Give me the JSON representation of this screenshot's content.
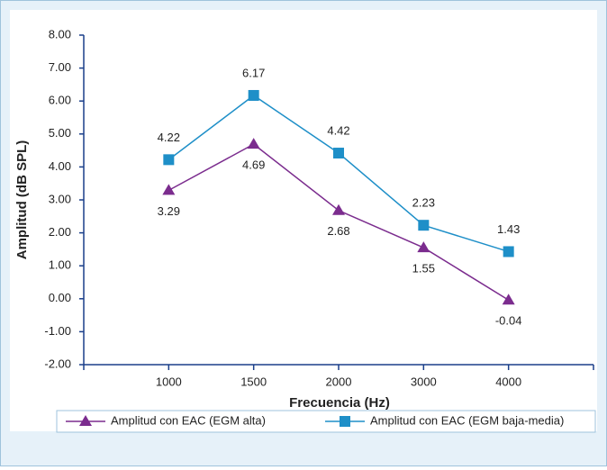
{
  "chart_data": {
    "type": "line",
    "x_label": "Frecuencia (Hz)",
    "y_label": "Amplitud (dB SPL)",
    "categories": [
      "1000",
      "1500",
      "2000",
      "3000",
      "4000"
    ],
    "series": [
      {
        "name": "Amplitud con EAC (EGM alta)",
        "color": "#7b2c8e",
        "marker": "triangle",
        "values": [
          3.29,
          4.69,
          2.68,
          1.55,
          -0.04
        ]
      },
      {
        "name": "Amplitud con EAC (EGM baja-media)",
        "color": "#1e8fc8",
        "marker": "square",
        "values": [
          4.22,
          6.17,
          4.42,
          2.23,
          1.43
        ]
      }
    ],
    "ylim": [
      -2,
      8
    ],
    "yticks": [
      {
        "value": -2,
        "label": "-2.00"
      },
      {
        "value": -1,
        "label": "-1.00"
      },
      {
        "value": 0,
        "label": "0.00"
      },
      {
        "value": 1,
        "label": "1.00"
      },
      {
        "value": 2,
        "label": "2.00"
      },
      {
        "value": 3,
        "label": "3.00"
      },
      {
        "value": 4,
        "label": "4.00"
      },
      {
        "value": 5,
        "label": "5.00"
      },
      {
        "value": 6,
        "label": "6.00"
      },
      {
        "value": 7,
        "label": "7.00"
      },
      {
        "value": 8,
        "label": "8.00"
      }
    ],
    "grid": false,
    "legend": "bottom"
  }
}
